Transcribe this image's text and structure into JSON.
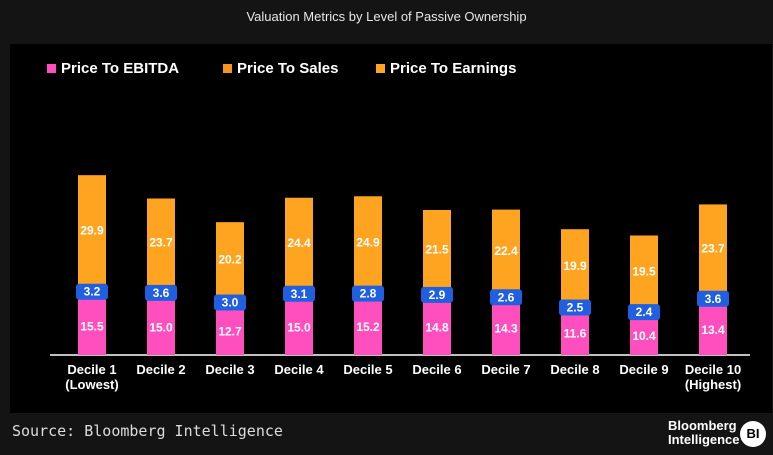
{
  "chart_data": {
    "type": "bar",
    "stacked": true,
    "title": "Valuation Metrics by Level of Passive Ownership",
    "categories": [
      [
        "Decile 1",
        "(Lowest)"
      ],
      [
        "Decile 2"
      ],
      [
        "Decile 3"
      ],
      [
        "Decile 4"
      ],
      [
        "Decile 5"
      ],
      [
        "Decile 6"
      ],
      [
        "Decile 7"
      ],
      [
        "Decile 8"
      ],
      [
        "Decile 9"
      ],
      [
        "Decile 10",
        "(Highest)"
      ]
    ],
    "series": [
      {
        "name": "Price To EBITDA",
        "color": "#ff4fbf",
        "values": [
          15.5,
          15.0,
          12.7,
          15.0,
          15.2,
          14.8,
          14.3,
          11.6,
          10.4,
          13.4
        ]
      },
      {
        "name": "Price To Sales",
        "color": "#1f5fe0",
        "legend_color": "#f7931e",
        "values": [
          3.2,
          3.6,
          3.0,
          3.1,
          2.8,
          2.9,
          2.6,
          2.5,
          2.4,
          3.6
        ]
      },
      {
        "name": "Price To Earnings",
        "color": "#ffa421",
        "values": [
          29.9,
          23.7,
          20.2,
          24.4,
          24.9,
          21.5,
          22.4,
          19.9,
          19.5,
          23.7
        ]
      }
    ],
    "ylim": [
      0,
      55
    ],
    "legend_position": "top-left",
    "xlabel": "",
    "ylabel": ""
  },
  "footer": {
    "source": "Source: Bloomberg Intelligence",
    "brand_line1": "Bloomberg",
    "brand_line2": "Intelligence",
    "brand_badge": "BI"
  }
}
